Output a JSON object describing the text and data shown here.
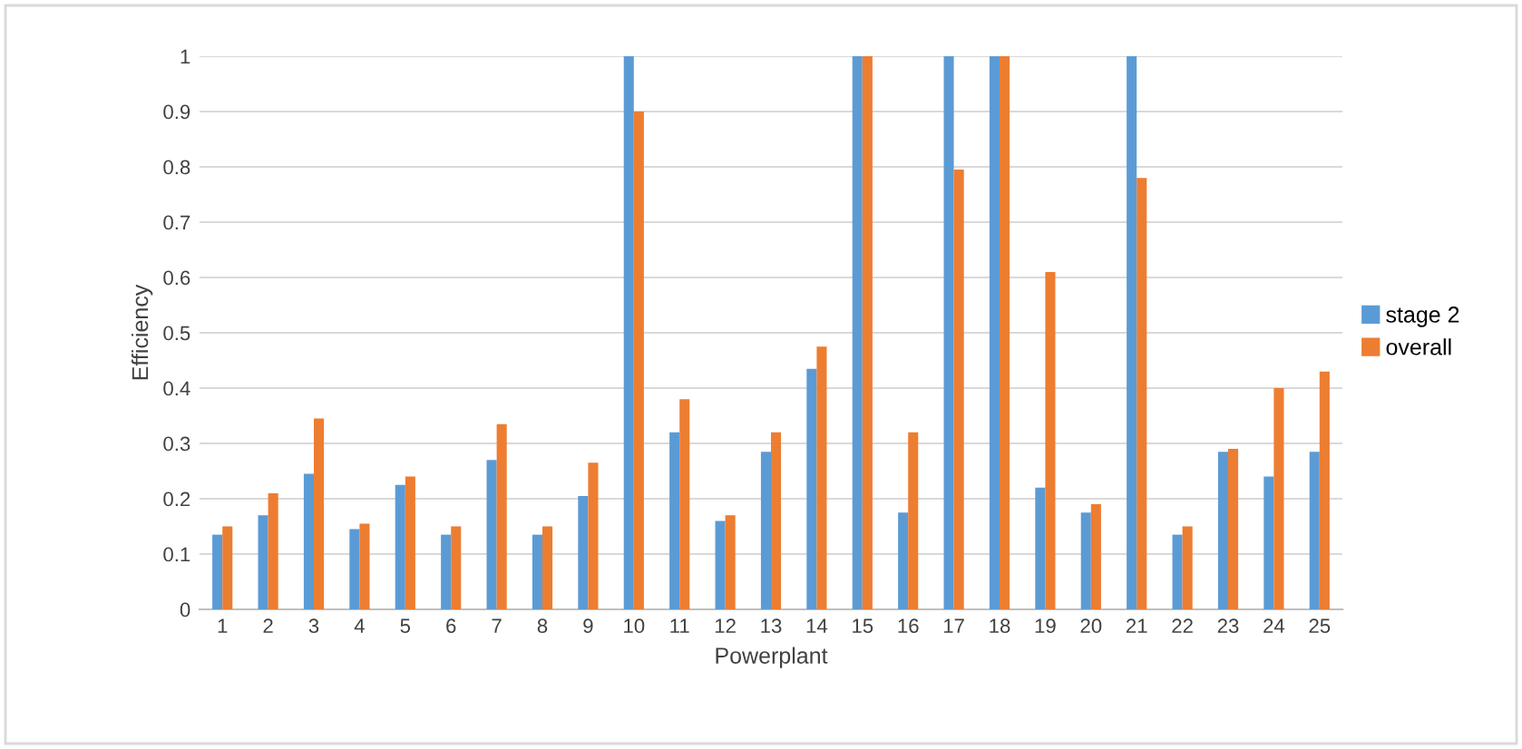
{
  "chart_data": {
    "type": "bar",
    "xlabel": "Powerplant",
    "ylabel": "Efficiency",
    "categories": [
      "1",
      "2",
      "3",
      "4",
      "5",
      "6",
      "7",
      "8",
      "9",
      "10",
      "11",
      "12",
      "13",
      "14",
      "15",
      "16",
      "17",
      "18",
      "19",
      "20",
      "21",
      "22",
      "23",
      "24",
      "25"
    ],
    "series": [
      {
        "name": "stage 2",
        "color": "#5b9bd5",
        "values": [
          0.135,
          0.17,
          0.245,
          0.145,
          0.225,
          0.135,
          0.27,
          0.135,
          0.205,
          1,
          0.32,
          0.16,
          0.285,
          0.435,
          1,
          0.175,
          1,
          1,
          0.22,
          0.175,
          1,
          0.135,
          0.285,
          0.24,
          0.285
        ]
      },
      {
        "name": "overall",
        "color": "#ed7d31",
        "values": [
          0.15,
          0.21,
          0.345,
          0.155,
          0.24,
          0.15,
          0.335,
          0.15,
          0.265,
          0.9,
          0.38,
          0.17,
          0.32,
          0.475,
          1,
          0.32,
          0.795,
          1,
          0.61,
          0.19,
          0.78,
          0.15,
          0.29,
          0.4,
          0.43
        ]
      }
    ],
    "ylim": [
      0,
      1
    ],
    "yticks": [
      0,
      0.1,
      0.2,
      0.3,
      0.4,
      0.5,
      0.6,
      0.7,
      0.8,
      0.9,
      1
    ],
    "grid": "y",
    "legend": "right"
  }
}
